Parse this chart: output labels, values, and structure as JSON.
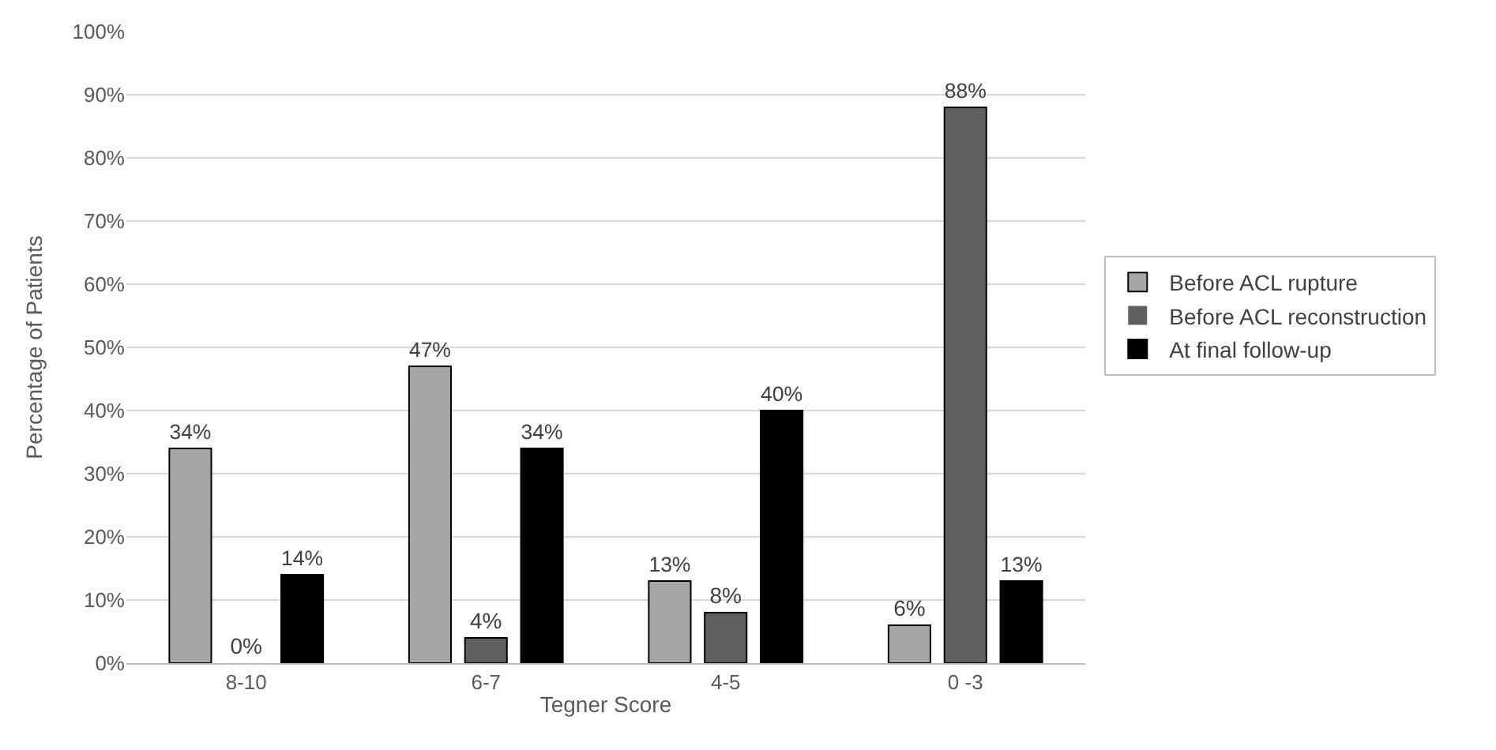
{
  "chart_data": {
    "type": "bar",
    "xlabel": "Tegner Score",
    "ylabel": "Percentage of Patients",
    "categories": [
      "8-10",
      "6-7",
      "4-5",
      "0 -3"
    ],
    "series": [
      {
        "name": "Before ACL rupture",
        "color": "#a6a6a6",
        "values": [
          34,
          47,
          13,
          6
        ],
        "value_labels": [
          "34%",
          "47%",
          "13%",
          "6%"
        ]
      },
      {
        "name": "Before ACL reconstruction",
        "color": "#606060",
        "values": [
          0,
          4,
          8,
          88
        ],
        "value_labels": [
          "0%",
          "4%",
          "8%",
          "88%"
        ]
      },
      {
        "name": "At final follow-up",
        "color": "#000000",
        "values": [
          14,
          34,
          40,
          13
        ],
        "value_labels": [
          "14%",
          "34%",
          "40%",
          "13%"
        ]
      }
    ],
    "ylim": [
      0,
      100
    ],
    "yticks": [
      {
        "value": 0,
        "label": "0%"
      },
      {
        "value": 10,
        "label": "10%"
      },
      {
        "value": 20,
        "label": "20%"
      },
      {
        "value": 30,
        "label": "30%"
      },
      {
        "value": 40,
        "label": "40%"
      },
      {
        "value": 50,
        "label": "50%"
      },
      {
        "value": 60,
        "label": "60%"
      },
      {
        "value": 70,
        "label": "70%"
      },
      {
        "value": 80,
        "label": "80%"
      },
      {
        "value": 90,
        "label": "90%"
      },
      {
        "value": 100,
        "label": "100%"
      }
    ],
    "grid": "y",
    "legend": "right"
  }
}
